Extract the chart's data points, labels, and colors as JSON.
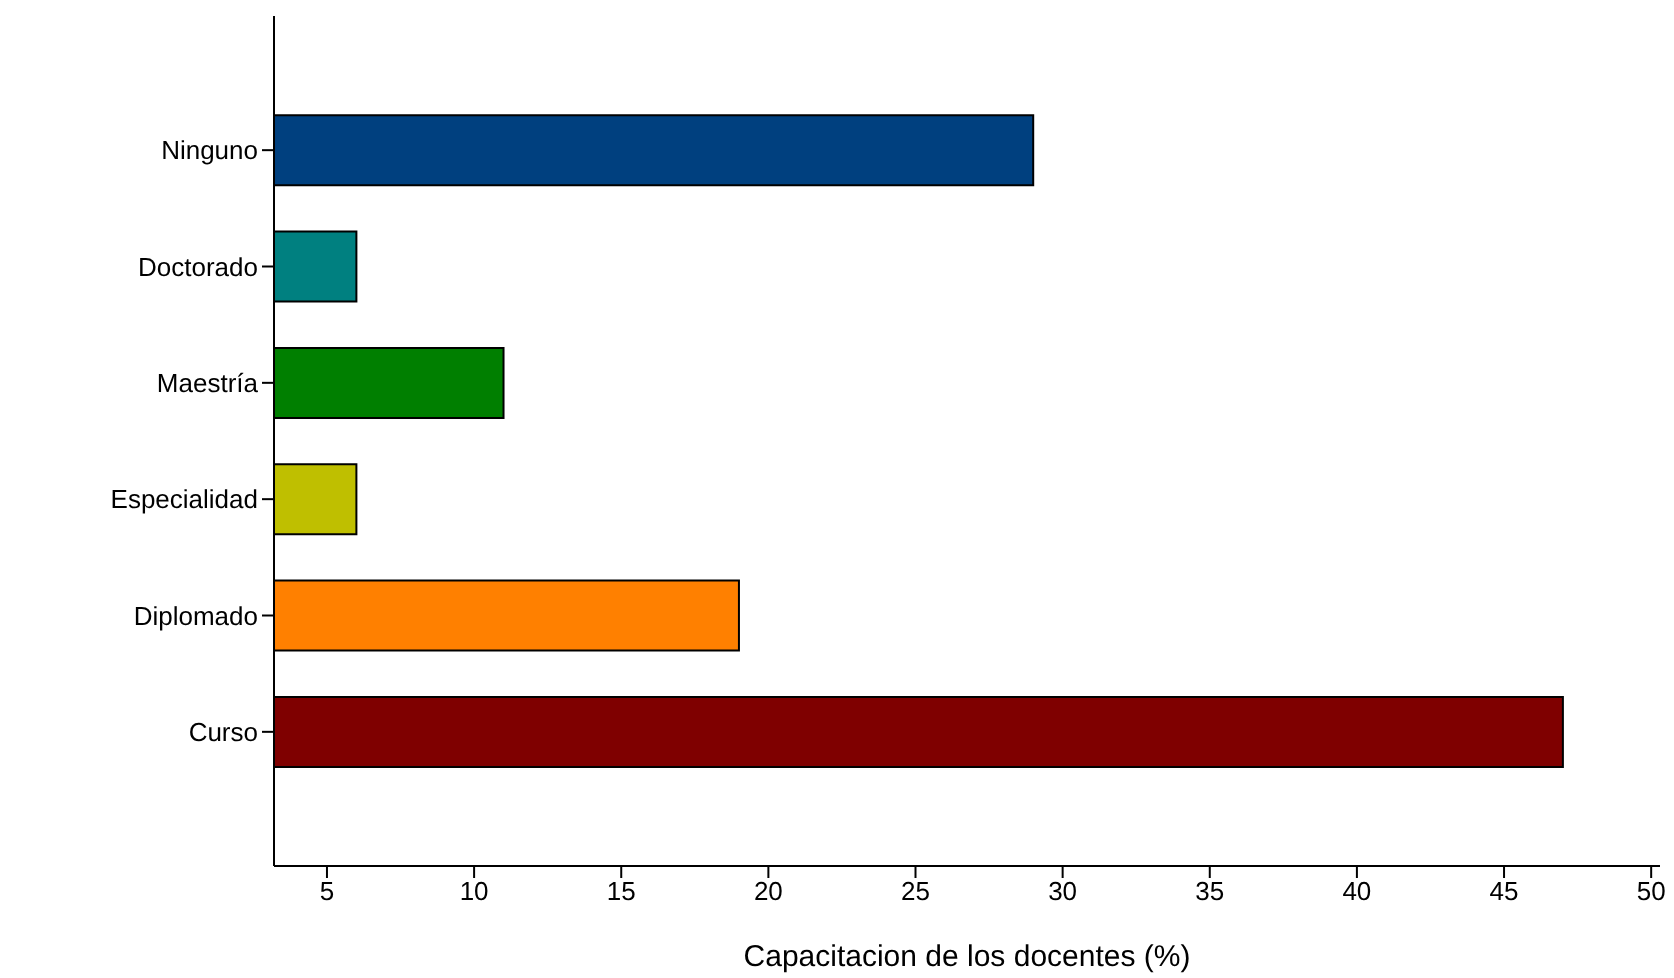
{
  "chart_data": {
    "type": "bar",
    "orientation": "horizontal",
    "xlabel": "Capacitacion de los docentes (%)",
    "categories": [
      "Ninguno",
      "Doctorado",
      "Maestría",
      "Especialidad",
      "Diplomado",
      "Curso"
    ],
    "values": [
      29,
      6,
      11,
      6,
      19,
      47
    ],
    "colors": [
      "#00407f",
      "#008080",
      "#007f00",
      "#bfbf00",
      "#ff8000",
      "#7f0000"
    ],
    "xlim": [
      3.2,
      50.3
    ],
    "xticks": [
      5,
      10,
      15,
      20,
      25,
      30,
      35,
      40,
      45,
      50
    ],
    "grid": false
  }
}
